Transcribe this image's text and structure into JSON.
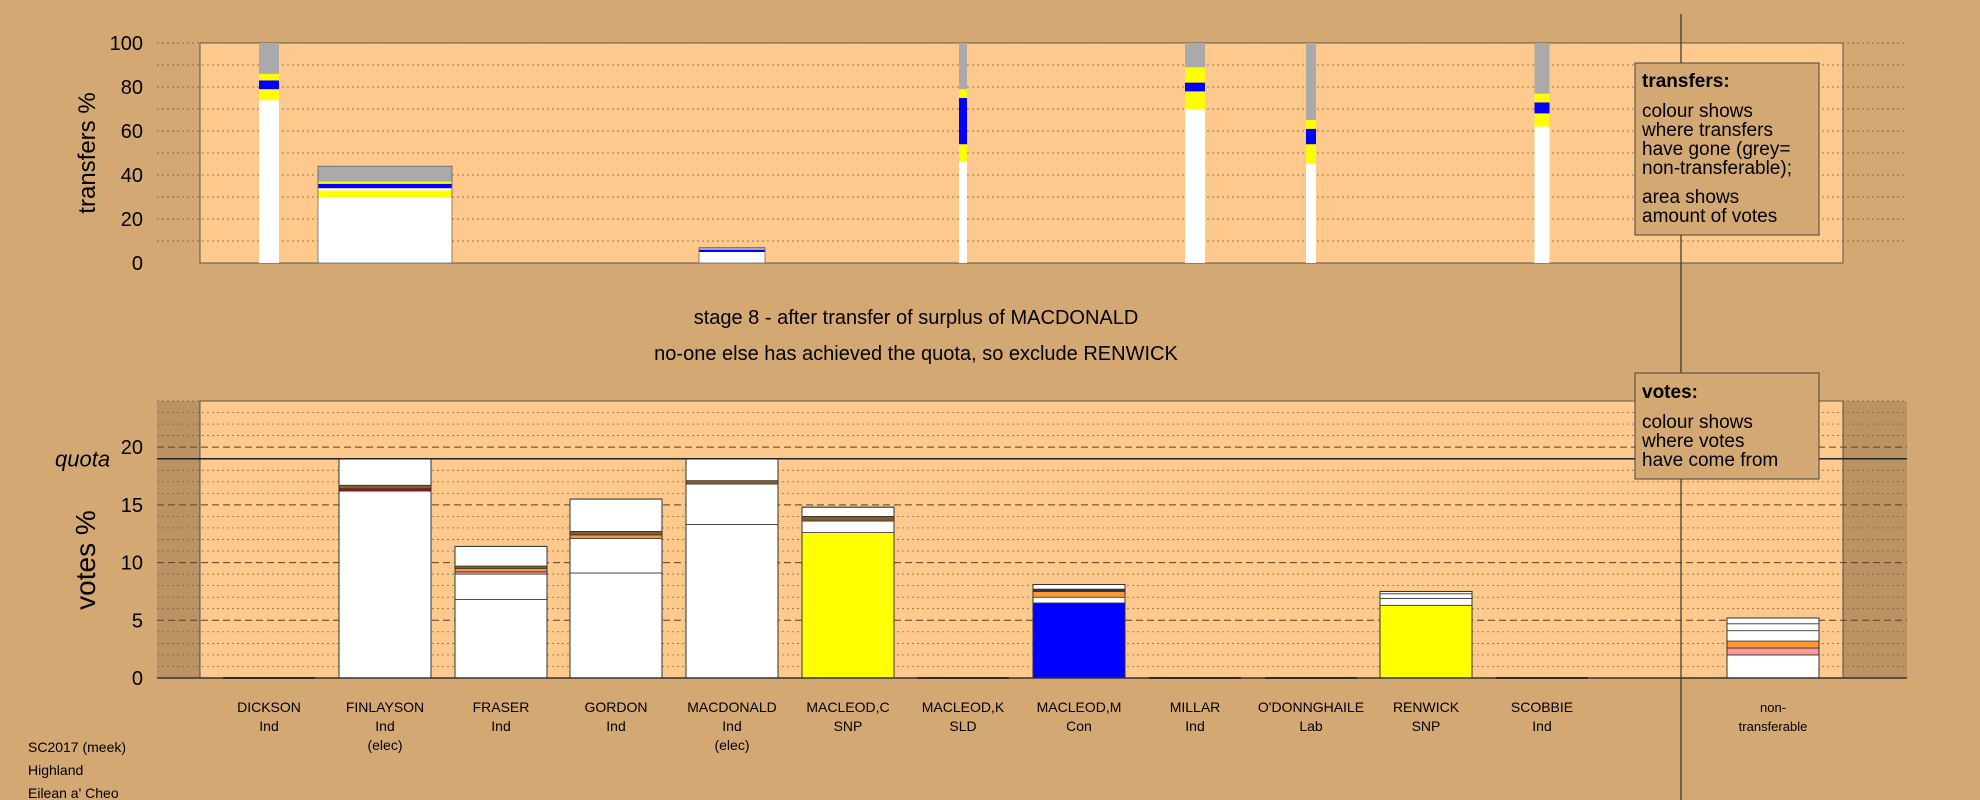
{
  "colors": {
    "background": "#d4a872",
    "plot_area": "#fec98c",
    "legend_box": "#d4a872",
    "white": "#ffffff",
    "yellow": "#ffff00",
    "blue": "#0000ff",
    "grey": "#aaaaaa",
    "orange": "#ff9933",
    "brown": "#8b5a2b",
    "pink": "#ff9999",
    "dark": "#333333",
    "red": "#cc0000"
  },
  "header": {
    "stage_title": "stage 8 - after transfer of surplus of MACDONALD",
    "stage_note": "no-one else has achieved the quota, so exclude RENWICK"
  },
  "footer": {
    "lines": [
      "SC2017 (meek)",
      "Highland",
      "Eilean a' Cheo"
    ]
  },
  "transfers_legend": {
    "title": "transfers:",
    "lines1": [
      "colour shows",
      "where transfers",
      "have gone (grey=",
      "non-transferable);"
    ],
    "lines2": [
      "area shows",
      "amount of votes"
    ]
  },
  "votes_legend": {
    "title": "votes:",
    "lines": [
      "colour shows",
      "where votes",
      "have come from"
    ]
  },
  "candidates": [
    {
      "name": "DICKSON",
      "party": "Ind",
      "note": ""
    },
    {
      "name": "FINLAYSON",
      "party": "Ind",
      "note": "(elec)"
    },
    {
      "name": "FRASER",
      "party": "Ind",
      "note": ""
    },
    {
      "name": "GORDON",
      "party": "Ind",
      "note": ""
    },
    {
      "name": "MACDONALD",
      "party": "Ind",
      "note": "(elec)"
    },
    {
      "name": "MACLEOD,C",
      "party": "SNP",
      "note": ""
    },
    {
      "name": "MACLEOD,K",
      "party": "SLD",
      "note": ""
    },
    {
      "name": "MACLEOD,M",
      "party": "Con",
      "note": ""
    },
    {
      "name": "MILLAR",
      "party": "Ind",
      "note": ""
    },
    {
      "name": "O'DONNGHAILE",
      "party": "Lab",
      "note": ""
    },
    {
      "name": "RENWICK",
      "party": "SNP",
      "note": ""
    },
    {
      "name": "SCOBBIE",
      "party": "Ind",
      "note": ""
    },
    {
      "name": "non-",
      "party": "transferable",
      "note": ""
    }
  ],
  "chart_data": [
    {
      "type": "bar",
      "ylabel": "transfers %",
      "ylim": [
        0,
        100
      ],
      "yticks": [
        0,
        20,
        40,
        60,
        80,
        100
      ],
      "grid": "dotted horizontal every 10",
      "legend_position": "top-right",
      "bars": [
        {
          "candidate": "DICKSON",
          "segments": [
            {
              "color": "white",
              "value": 74
            },
            {
              "color": "yellow",
              "value": 5
            },
            {
              "color": "blue",
              "value": 4
            },
            {
              "color": "yellow",
              "value": 3
            },
            {
              "color": "grey",
              "value": 14
            }
          ]
        },
        {
          "candidate": "FINLAYSON",
          "segments": [
            {
              "color": "white",
              "value": 30
            },
            {
              "color": "yellow",
              "value": 3
            },
            {
              "color": "white",
              "value": 1
            },
            {
              "color": "blue",
              "value": 2
            },
            {
              "color": "yellow",
              "value": 1
            },
            {
              "color": "grey",
              "value": 7
            }
          ]
        },
        {
          "candidate": "MACDONALD",
          "segments": [
            {
              "color": "white",
              "value": 5
            },
            {
              "color": "blue",
              "value": 1
            },
            {
              "color": "grey",
              "value": 1
            }
          ]
        },
        {
          "candidate": "MACLEOD,K",
          "segments": [
            {
              "color": "white",
              "value": 46
            },
            {
              "color": "yellow",
              "value": 8
            },
            {
              "color": "blue",
              "value": 21
            },
            {
              "color": "yellow",
              "value": 4
            },
            {
              "color": "grey",
              "value": 21
            }
          ]
        },
        {
          "candidate": "MILLAR",
          "segments": [
            {
              "color": "white",
              "value": 70
            },
            {
              "color": "yellow",
              "value": 8
            },
            {
              "color": "blue",
              "value": 4
            },
            {
              "color": "yellow",
              "value": 7
            },
            {
              "color": "grey",
              "value": 11
            }
          ]
        },
        {
          "candidate": "O'DONNGHAILE",
          "segments": [
            {
              "color": "white",
              "value": 45
            },
            {
              "color": "yellow",
              "value": 9
            },
            {
              "color": "blue",
              "value": 7
            },
            {
              "color": "yellow",
              "value": 4
            },
            {
              "color": "grey",
              "value": 35
            }
          ]
        },
        {
          "candidate": "SCOBBIE",
          "segments": [
            {
              "color": "white",
              "value": 62
            },
            {
              "color": "yellow",
              "value": 6
            },
            {
              "color": "blue",
              "value": 5
            },
            {
              "color": "yellow",
              "value": 4
            },
            {
              "color": "grey",
              "value": 23
            }
          ]
        }
      ]
    },
    {
      "type": "bar",
      "ylabel": "votes %",
      "ylim": [
        0,
        24
      ],
      "yticks": [
        0,
        5,
        10,
        15,
        20
      ],
      "quota_label": "quota",
      "quota": 19,
      "grid": "dashed every 5, dotted every 1",
      "legend_position": "top-right",
      "bars": [
        {
          "candidate": "DICKSON",
          "segments": []
        },
        {
          "candidate": "FINLAYSON",
          "segments": [
            {
              "color": "white",
              "value": 16.2
            },
            {
              "color": "red",
              "value": 0.2
            },
            {
              "color": "brown",
              "value": 0.3
            },
            {
              "color": "white",
              "value": 2.3
            }
          ]
        },
        {
          "candidate": "FRASER",
          "segments": [
            {
              "color": "white",
              "value": 6.8
            },
            {
              "color": "white",
              "value": 2.2
            },
            {
              "color": "pink",
              "value": 0.2
            },
            {
              "color": "orange",
              "value": 0.3
            },
            {
              "color": "brown",
              "value": 0.2
            },
            {
              "color": "white",
              "value": 1.7
            }
          ]
        },
        {
          "candidate": "GORDON",
          "segments": [
            {
              "color": "white",
              "value": 9.1
            },
            {
              "color": "white",
              "value": 3.0
            },
            {
              "color": "orange",
              "value": 0.3
            },
            {
              "color": "brown",
              "value": 0.3
            },
            {
              "color": "white",
              "value": 2.8
            }
          ]
        },
        {
          "candidate": "MACDONALD",
          "segments": [
            {
              "color": "white",
              "value": 13.3
            },
            {
              "color": "white",
              "value": 3.5
            },
            {
              "color": "brown",
              "value": 0.3
            },
            {
              "color": "white",
              "value": 1.9
            }
          ]
        },
        {
          "candidate": "MACLEOD,C",
          "segments": [
            {
              "color": "yellow",
              "value": 12.6
            },
            {
              "color": "white",
              "value": 1.0
            },
            {
              "color": "brown",
              "value": 0.4
            },
            {
              "color": "white",
              "value": 0.8
            }
          ]
        },
        {
          "candidate": "MACLEOD,K",
          "segments": []
        },
        {
          "candidate": "MACLEOD,M",
          "segments": [
            {
              "color": "blue",
              "value": 6.5
            },
            {
              "color": "white",
              "value": 0.5
            },
            {
              "color": "orange",
              "value": 0.5
            },
            {
              "color": "dark",
              "value": 0.2
            },
            {
              "color": "white",
              "value": 0.4
            }
          ]
        },
        {
          "candidate": "MILLAR",
          "segments": []
        },
        {
          "candidate": "O'DONNGHAILE",
          "segments": []
        },
        {
          "candidate": "RENWICK",
          "segments": [
            {
              "color": "yellow",
              "value": 6.3
            },
            {
              "color": "white",
              "value": 0.6
            },
            {
              "color": "white",
              "value": 0.4
            },
            {
              "color": "white",
              "value": 0.2
            }
          ]
        },
        {
          "candidate": "SCOBBIE",
          "segments": []
        },
        {
          "candidate": "non-transferable",
          "segments": [
            {
              "color": "white",
              "value": 2.0
            },
            {
              "color": "pink",
              "value": 0.6
            },
            {
              "color": "orange",
              "value": 0.6
            },
            {
              "color": "white",
              "value": 0.9
            },
            {
              "color": "white",
              "value": 0.6
            },
            {
              "color": "white",
              "value": 0.5
            }
          ]
        }
      ]
    }
  ]
}
